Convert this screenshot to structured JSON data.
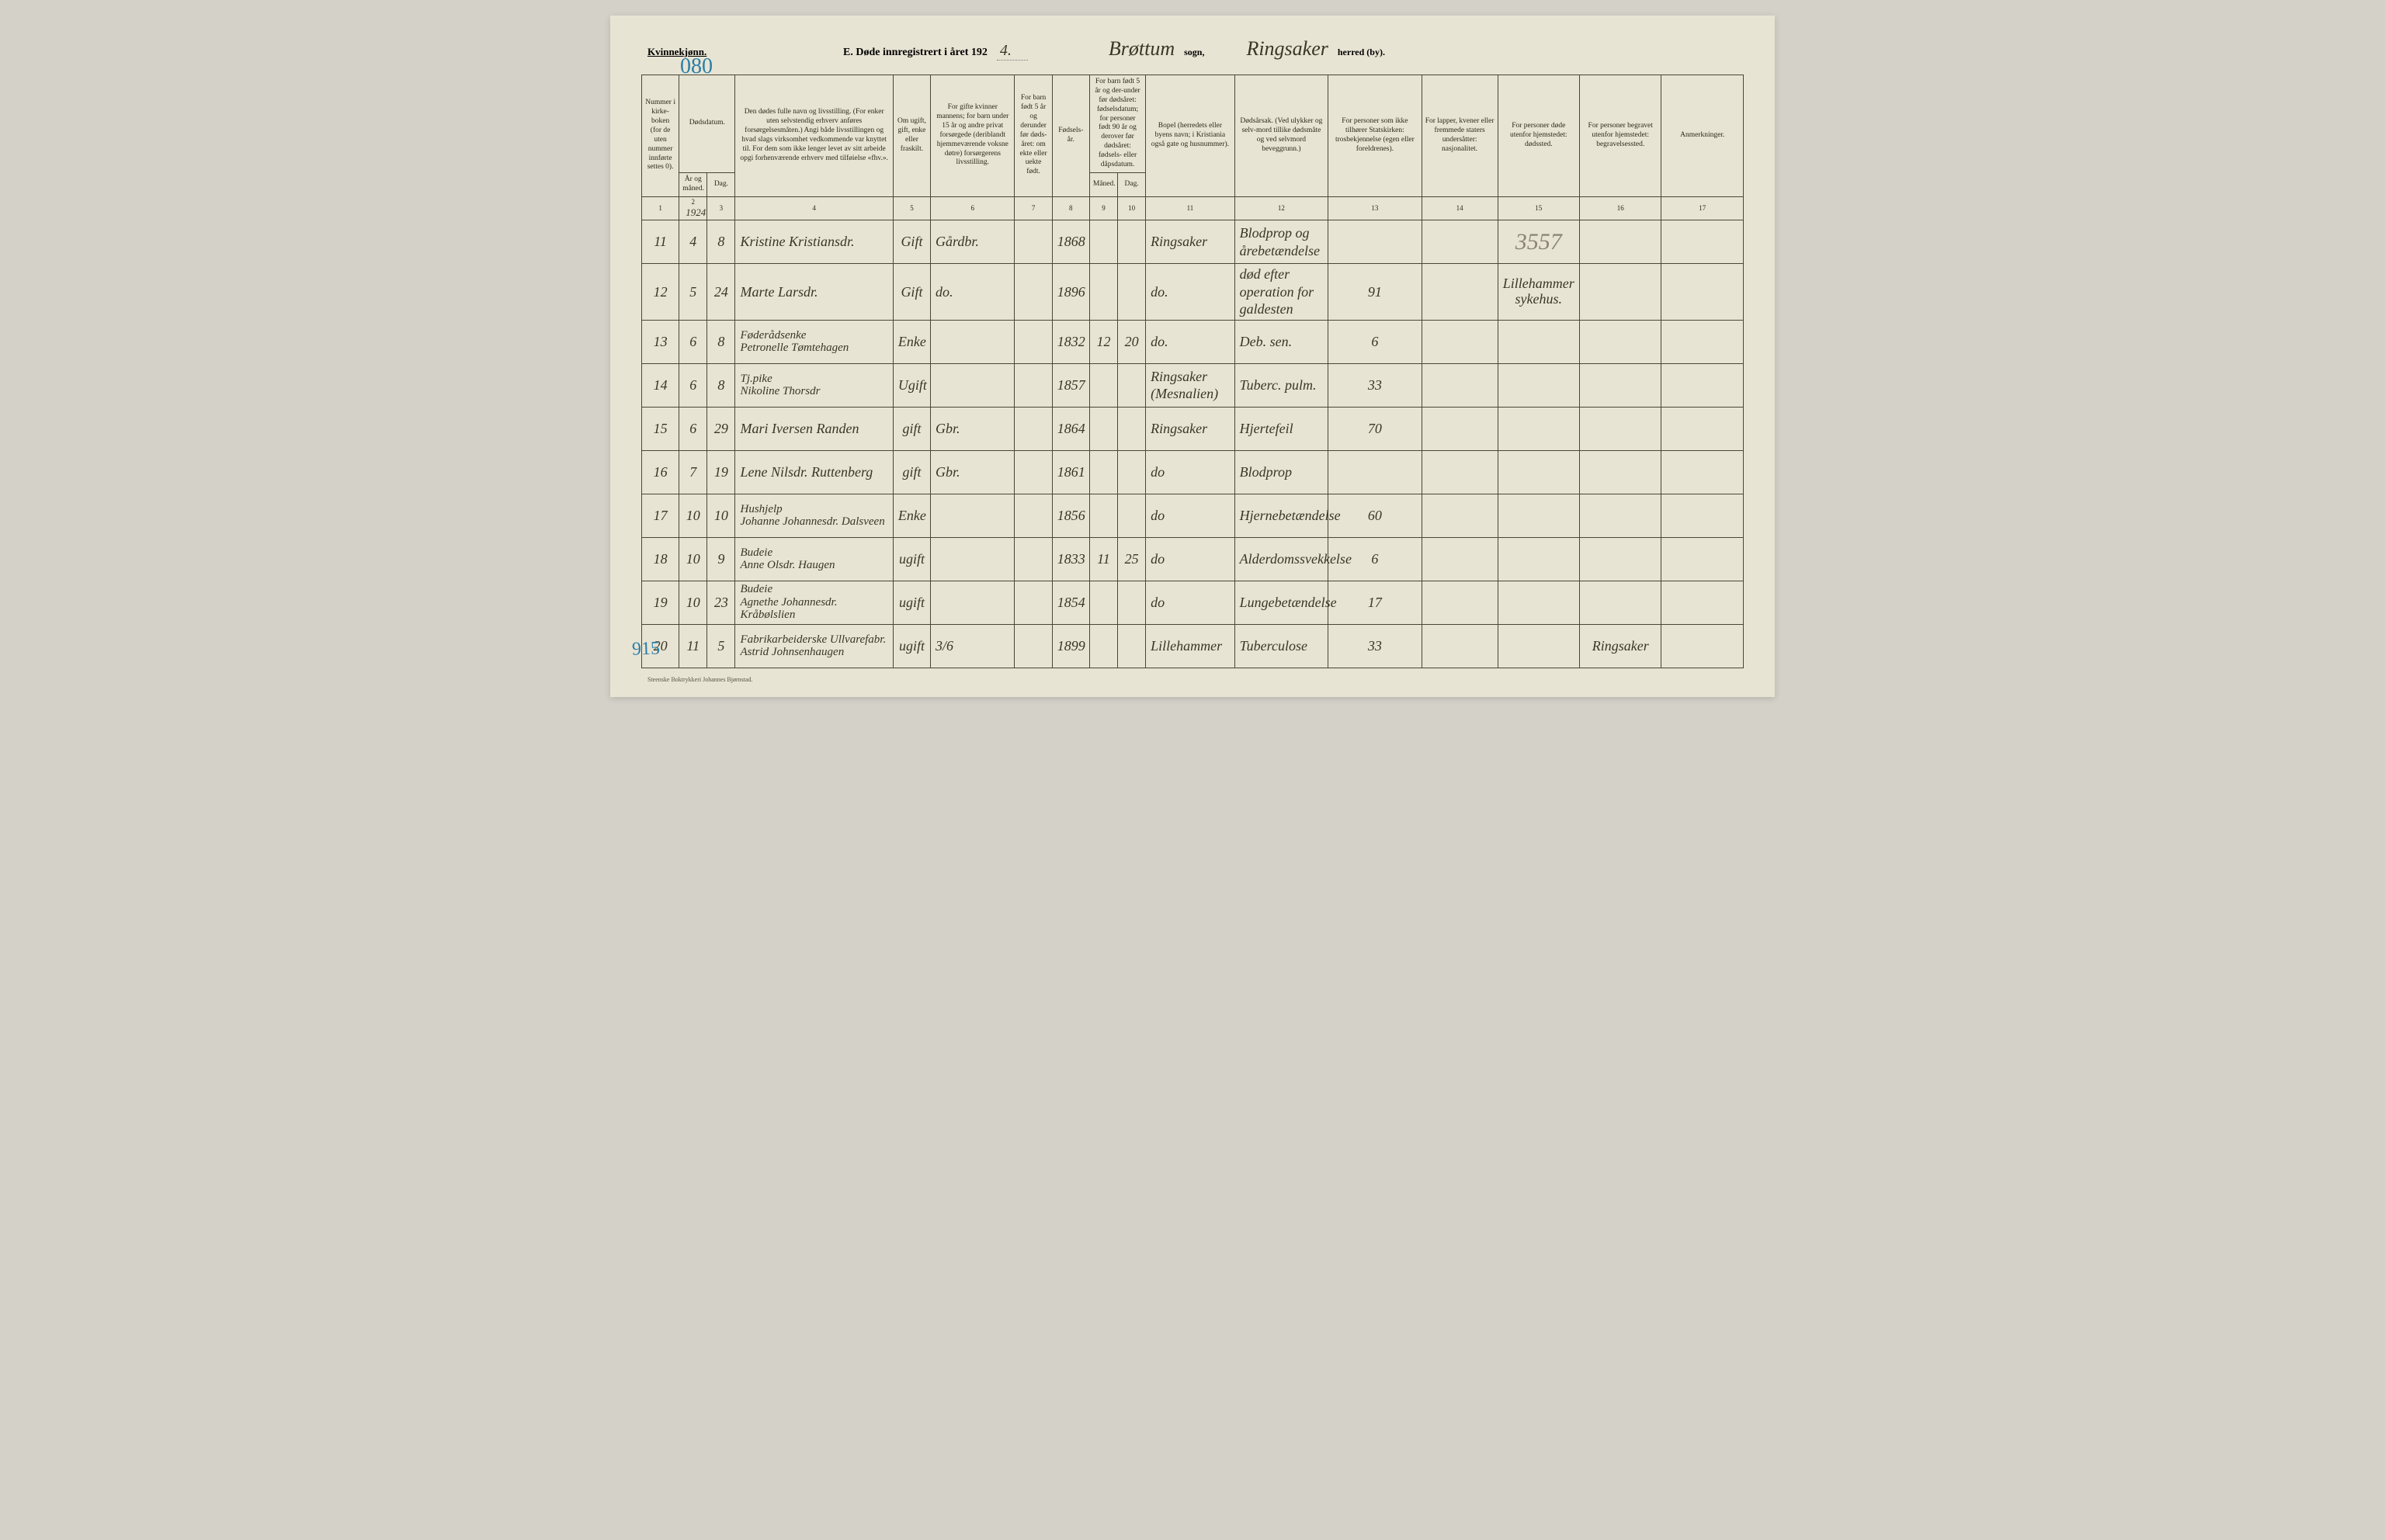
{
  "header": {
    "gender": "Kvinnekjønn.",
    "page_number": "080",
    "title_prefix": "E.  Døde innregistrert i året 192",
    "year_suffix": "4.",
    "parish": "Brøttum",
    "sogn_label": "sogn,",
    "district": "Ringsaker",
    "herred_label": "herred (by)."
  },
  "columns": {
    "c1": "Nummer i kirke-boken (for de uten nummer innførte settes 0).",
    "c23_top": "Dødsdatum.",
    "c2": "År og måned.",
    "c3": "Dag.",
    "c4": "Den dødes fulle navn og livsstilling.\n(For enker uten selvstendig erhverv anføres forsørgelsesmåten.)\nAngi både livsstillingen og hvad slags virksomhet vedkommende var knyttet til.\nFor dem som ikke lenger levet av sitt arbeide opgi forhenværende erhverv med tilføielse «fhv.».",
    "c5": "Om ugift, gift, enke eller fraskilt.",
    "c6": "For gifte kvinner mannens;\nfor barn under 15 år og andre privat forsørgede (deriblandt hjemmeværende voksne døtre) forsørgerens livsstilling.",
    "c7": "For barn født 5 år og derunder før døds-året: om ekte eller uekte født.",
    "c8": "Fødsels-år.",
    "c910_top": "For barn født 5 år og der-under før dødsåret: fødselsdatum; for personer født 90 år og derover før dødsåret: fødsels- eller dåpsdatum.",
    "c9": "Måned.",
    "c10": "Dag.",
    "c11": "Bopel\n(herredets eller byens navn; i Kristiania også gate og husnummer).",
    "c12": "Dødsårsak.\n(Ved ulykker og selv-mord tillike dødsmåte og ved selvmord beveggrunn.)",
    "c13": "For personer som ikke tilhører Statskirken:\ntrosbekjennelse (egen eller foreldrenes).",
    "c14": "For lapper, kvener eller fremmede staters undersåtter:\nnasjonalitet.",
    "c15": "For personer døde utenfor hjemstedet:\ndødssted.",
    "c16": "For personer begravet utenfor hjemstedet:\nbegravelsessted.",
    "c17": "Anmerkninger."
  },
  "colnums": [
    "1",
    "2",
    "3",
    "4",
    "5",
    "6",
    "7",
    "8",
    "9",
    "10",
    "11",
    "12",
    "13",
    "14",
    "15",
    "16",
    "17"
  ],
  "year_in_col2": "1924",
  "big_annotation_col14_15": "3557",
  "side_annotation": "915",
  "rows": [
    {
      "num": "11",
      "mon": "4",
      "day": "8",
      "name": "Kristine Kristiansdr.",
      "status": "Gift",
      "spouse": "Gårdbr.",
      "ekte": "",
      "birth": "1868",
      "bm": "",
      "bd": "",
      "place": "Ringsaker",
      "cause": "Blodprop og årebetændelse",
      "c13": "",
      "c14": "",
      "c15": "",
      "c16": "",
      "c17": ""
    },
    {
      "num": "12",
      "mon": "5",
      "day": "24",
      "name": "Marte Larsdr.",
      "status": "Gift",
      "spouse": "do.",
      "ekte": "",
      "birth": "1896",
      "bm": "",
      "bd": "",
      "place": "do.",
      "cause": "død efter operation for galdesten",
      "c13": "91",
      "c14": "",
      "c15": "Lillehammer sykehus.",
      "c16": "",
      "c17": ""
    },
    {
      "num": "13",
      "mon": "6",
      "day": "8",
      "name": "Føderådsenke\nPetronelle Tømtehagen",
      "status": "Enke",
      "spouse": "",
      "ekte": "",
      "birth": "1832",
      "bm": "12",
      "bd": "20",
      "place": "do.",
      "cause": "Deb. sen.",
      "c13": "6",
      "c14": "",
      "c15": "",
      "c16": "",
      "c17": ""
    },
    {
      "num": "14",
      "mon": "6",
      "day": "8",
      "name": "Tj.pike\nNikoline Thorsdr",
      "status": "Ugift",
      "spouse": "",
      "ekte": "",
      "birth": "1857",
      "bm": "",
      "bd": "",
      "place": "Ringsaker (Mesnalien)",
      "cause": "Tuberc. pulm.",
      "c13": "33",
      "c14": "",
      "c15": "",
      "c16": "",
      "c17": ""
    },
    {
      "num": "15",
      "mon": "6",
      "day": "29",
      "name": "Mari Iversen Randen",
      "status": "gift",
      "spouse": "Gbr.",
      "ekte": "",
      "birth": "1864",
      "bm": "",
      "bd": "",
      "place": "Ringsaker",
      "cause": "Hjertefeil",
      "c13": "70",
      "c14": "",
      "c15": "",
      "c16": "",
      "c17": ""
    },
    {
      "num": "16",
      "mon": "7",
      "day": "19",
      "name": "Lene Nilsdr. Ruttenberg",
      "status": "gift",
      "spouse": "Gbr.",
      "ekte": "",
      "birth": "1861",
      "bm": "",
      "bd": "",
      "place": "do",
      "cause": "Blodprop",
      "c13": "",
      "c14": "",
      "c15": "",
      "c16": "",
      "c17": ""
    },
    {
      "num": "17",
      "mon": "10",
      "day": "10",
      "name": "Hushjelp\nJohanne Johannesdr. Dalsveen",
      "status": "Enke",
      "spouse": "",
      "ekte": "",
      "birth": "1856",
      "bm": "",
      "bd": "",
      "place": "do",
      "cause": "Hjernebetændelse",
      "c13": "60",
      "c14": "",
      "c15": "",
      "c16": "",
      "c17": ""
    },
    {
      "num": "18",
      "mon": "10",
      "day": "9",
      "name": "Budeie\nAnne Olsdr. Haugen",
      "status": "ugift",
      "spouse": "",
      "ekte": "",
      "birth": "1833",
      "bm": "11",
      "bd": "25",
      "place": "do",
      "cause": "Alderdomssvekkelse",
      "c13": "6",
      "c14": "",
      "c15": "",
      "c16": "",
      "c17": ""
    },
    {
      "num": "19",
      "mon": "10",
      "day": "23",
      "name": "Budeie\nAgnethe Johannesdr. Kråbølslien",
      "status": "ugift",
      "spouse": "",
      "ekte": "",
      "birth": "1854",
      "bm": "",
      "bd": "",
      "place": "do",
      "cause": "Lungebetændelse",
      "c13": "17",
      "c14": "",
      "c15": "",
      "c16": "",
      "c17": ""
    },
    {
      "num": "20",
      "mon": "11",
      "day": "5",
      "name": "Fabrikarbeiderske Ullvarefabr.\nAstrid Johnsenhaugen",
      "status": "ugift",
      "spouse": "3/6",
      "ekte": "",
      "birth": "1899",
      "bm": "",
      "bd": "",
      "place": "Lillehammer",
      "cause": "Tuberculose",
      "c13": "33",
      "c14": "",
      "c15": "",
      "c16": "Ringsaker",
      "c17": ""
    }
  ],
  "footer": "Steenske Boktrykkeri Johannes Bjørnstad."
}
